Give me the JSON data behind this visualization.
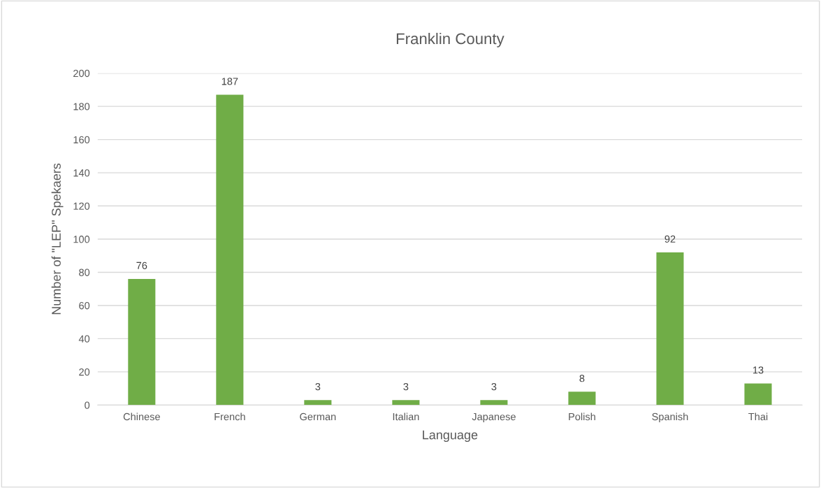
{
  "chart_data": {
    "type": "bar",
    "title": "Franklin County",
    "xlabel": "Language",
    "ylabel": "Number of \"LEP\" Spekaers",
    "categories": [
      "Chinese",
      "French",
      "German",
      "Italian",
      "Japanese",
      "Polish",
      "Spanish",
      "Thai"
    ],
    "values": [
      76,
      187,
      3,
      3,
      3,
      8,
      92,
      13
    ],
    "color": "#70ad47",
    "ylim": [
      0,
      200
    ],
    "yticks": [
      0,
      20,
      40,
      60,
      80,
      100,
      120,
      140,
      160,
      180,
      200
    ],
    "grid": "y",
    "data_labels": true,
    "legend": false
  }
}
